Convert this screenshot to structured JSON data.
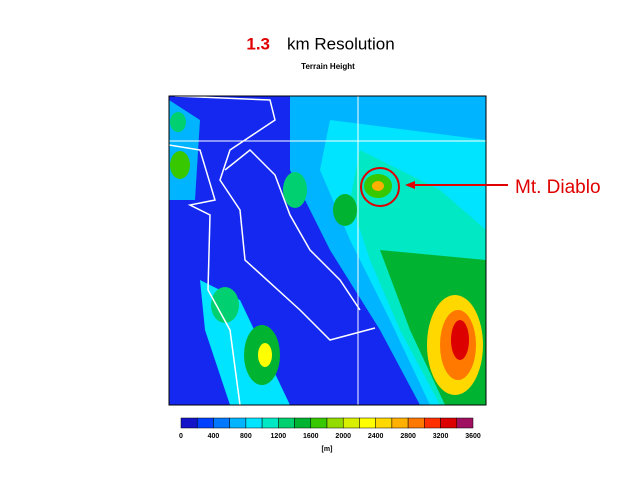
{
  "title": {
    "value": "1.3",
    "text": "km Resolution"
  },
  "subtitle": "Terrain Height",
  "annotation": "Mt. Diablo",
  "colorbar": {
    "colors": [
      "#1414c8",
      "#0040ff",
      "#0078ff",
      "#00b4ff",
      "#00e4ff",
      "#00e8c4",
      "#00d070",
      "#00b432",
      "#38c800",
      "#94dc00",
      "#d8f000",
      "#ffff00",
      "#ffd800",
      "#ffb000",
      "#ff7800",
      "#ff3000",
      "#dc0000",
      "#a01060"
    ],
    "ticks": [
      "0",
      "400",
      "800",
      "1200",
      "1600",
      "2000",
      "2400",
      "2800",
      "3200",
      "3600"
    ],
    "unit": "[m]"
  }
}
